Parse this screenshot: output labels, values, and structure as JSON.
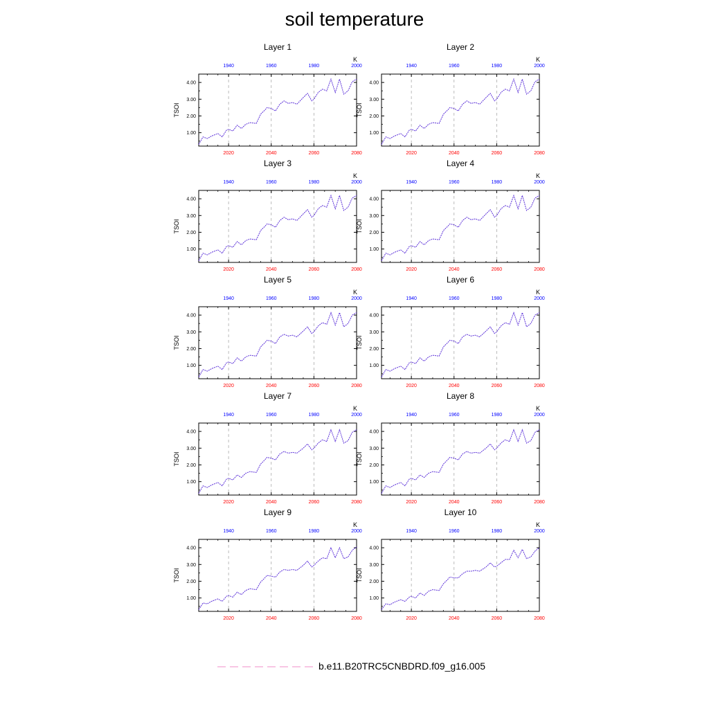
{
  "title": "soil temperature",
  "legend": {
    "label": "b.e11.B20TRC5CNBDRD.f09_g16.005"
  },
  "chart_data": {
    "type": "line",
    "title": "soil temperature",
    "ylabel": "TSOI",
    "units": "K",
    "x_bottom": {
      "ticks": [
        2020,
        2040,
        2060,
        2080
      ],
      "range": [
        2006,
        2080
      ]
    },
    "x_top": {
      "ticks": [
        1940,
        1960,
        1980,
        2000
      ],
      "range": [
        1926,
        2000
      ]
    },
    "yticks": [
      "1.00",
      "2.00",
      "3.00",
      "4.00"
    ],
    "ylim": [
      0.2,
      4.5
    ],
    "grid": "dashed vertical at bottom ticks",
    "series_name": "b.e11.B20TRC5CNBDRD.f09_g16.005",
    "panels": [
      {
        "label": "Layer 1",
        "x": [
          2006,
          2008,
          2010,
          2012,
          2015,
          2017,
          2019,
          2020,
          2022,
          2024,
          2026,
          2028,
          2030,
          2033,
          2035,
          2037,
          2038,
          2040,
          2042,
          2044,
          2046,
          2048,
          2050,
          2052,
          2055,
          2057,
          2059,
          2060,
          2062,
          2064,
          2066,
          2068,
          2070,
          2072,
          2074,
          2076,
          2078,
          2080
        ],
        "y": [
          0.3,
          0.75,
          0.65,
          0.8,
          0.95,
          0.75,
          1.15,
          1.2,
          1.1,
          1.45,
          1.25,
          1.5,
          1.6,
          1.55,
          2.1,
          2.35,
          2.5,
          2.45,
          2.3,
          2.7,
          2.9,
          2.75,
          2.8,
          2.7,
          3.1,
          3.35,
          2.9,
          3.0,
          3.4,
          3.6,
          3.5,
          4.2,
          3.4,
          4.2,
          3.3,
          3.5,
          4.05,
          4.2
        ]
      },
      {
        "label": "Layer 2",
        "x": [
          2006,
          2008,
          2010,
          2012,
          2015,
          2017,
          2019,
          2020,
          2022,
          2024,
          2026,
          2028,
          2030,
          2033,
          2035,
          2037,
          2038,
          2040,
          2042,
          2044,
          2046,
          2048,
          2050,
          2052,
          2055,
          2057,
          2059,
          2060,
          2062,
          2064,
          2066,
          2068,
          2070,
          2072,
          2074,
          2076,
          2078,
          2080
        ],
        "y": [
          0.3,
          0.75,
          0.65,
          0.8,
          0.95,
          0.75,
          1.15,
          1.2,
          1.1,
          1.45,
          1.25,
          1.5,
          1.6,
          1.55,
          2.1,
          2.35,
          2.5,
          2.45,
          2.3,
          2.7,
          2.9,
          2.75,
          2.8,
          2.7,
          3.1,
          3.35,
          2.9,
          3.0,
          3.4,
          3.6,
          3.5,
          4.2,
          3.4,
          4.2,
          3.3,
          3.5,
          4.05,
          4.2
        ]
      },
      {
        "label": "Layer 3",
        "x": [
          2006,
          2008,
          2010,
          2012,
          2015,
          2017,
          2019,
          2020,
          2022,
          2024,
          2026,
          2028,
          2030,
          2033,
          2035,
          2037,
          2038,
          2040,
          2042,
          2044,
          2046,
          2048,
          2050,
          2052,
          2055,
          2057,
          2059,
          2060,
          2062,
          2064,
          2066,
          2068,
          2070,
          2072,
          2074,
          2076,
          2078,
          2080
        ],
        "y": [
          0.3,
          0.75,
          0.65,
          0.8,
          0.95,
          0.75,
          1.15,
          1.2,
          1.1,
          1.45,
          1.25,
          1.5,
          1.6,
          1.55,
          2.1,
          2.35,
          2.5,
          2.45,
          2.3,
          2.7,
          2.9,
          2.75,
          2.8,
          2.7,
          3.1,
          3.35,
          2.9,
          3.0,
          3.4,
          3.6,
          3.5,
          4.2,
          3.4,
          4.2,
          3.3,
          3.5,
          4.05,
          4.2
        ]
      },
      {
        "label": "Layer 4",
        "x": [
          2006,
          2008,
          2010,
          2012,
          2015,
          2017,
          2019,
          2020,
          2022,
          2024,
          2026,
          2028,
          2030,
          2033,
          2035,
          2037,
          2038,
          2040,
          2042,
          2044,
          2046,
          2048,
          2050,
          2052,
          2055,
          2057,
          2059,
          2060,
          2062,
          2064,
          2066,
          2068,
          2070,
          2072,
          2074,
          2076,
          2078,
          2080
        ],
        "y": [
          0.3,
          0.75,
          0.65,
          0.8,
          0.95,
          0.75,
          1.15,
          1.2,
          1.1,
          1.45,
          1.25,
          1.5,
          1.6,
          1.55,
          2.1,
          2.35,
          2.5,
          2.45,
          2.3,
          2.7,
          2.9,
          2.75,
          2.8,
          2.7,
          3.1,
          3.35,
          2.9,
          3.0,
          3.4,
          3.6,
          3.5,
          4.2,
          3.4,
          4.2,
          3.3,
          3.5,
          4.05,
          4.2
        ]
      },
      {
        "label": "Layer 5",
        "x": [
          2006,
          2008,
          2010,
          2012,
          2015,
          2017,
          2019,
          2020,
          2022,
          2024,
          2026,
          2028,
          2030,
          2033,
          2035,
          2037,
          2038,
          2040,
          2042,
          2044,
          2046,
          2048,
          2050,
          2052,
          2055,
          2057,
          2059,
          2060,
          2062,
          2064,
          2066,
          2068,
          2070,
          2072,
          2074,
          2076,
          2078,
          2080
        ],
        "y": [
          0.3,
          0.75,
          0.65,
          0.8,
          0.95,
          0.75,
          1.15,
          1.2,
          1.1,
          1.45,
          1.25,
          1.5,
          1.6,
          1.55,
          2.1,
          2.35,
          2.5,
          2.45,
          2.3,
          2.7,
          2.85,
          2.75,
          2.8,
          2.7,
          3.05,
          3.3,
          2.9,
          3.0,
          3.35,
          3.55,
          3.45,
          4.15,
          3.4,
          4.15,
          3.3,
          3.5,
          4.0,
          4.15
        ]
      },
      {
        "label": "Layer 6",
        "x": [
          2006,
          2008,
          2010,
          2012,
          2015,
          2017,
          2019,
          2020,
          2022,
          2024,
          2026,
          2028,
          2030,
          2033,
          2035,
          2037,
          2038,
          2040,
          2042,
          2044,
          2046,
          2048,
          2050,
          2052,
          2055,
          2057,
          2059,
          2060,
          2062,
          2064,
          2066,
          2068,
          2070,
          2072,
          2074,
          2076,
          2078,
          2080
        ],
        "y": [
          0.3,
          0.75,
          0.65,
          0.8,
          0.95,
          0.75,
          1.15,
          1.2,
          1.1,
          1.45,
          1.25,
          1.5,
          1.6,
          1.55,
          2.1,
          2.35,
          2.5,
          2.45,
          2.3,
          2.7,
          2.85,
          2.75,
          2.8,
          2.7,
          3.05,
          3.3,
          2.9,
          3.0,
          3.35,
          3.55,
          3.45,
          4.15,
          3.4,
          4.15,
          3.3,
          3.5,
          4.0,
          4.15
        ]
      },
      {
        "label": "Layer 7",
        "x": [
          2006,
          2008,
          2010,
          2012,
          2015,
          2017,
          2019,
          2020,
          2022,
          2024,
          2026,
          2028,
          2030,
          2033,
          2035,
          2037,
          2038,
          2040,
          2042,
          2044,
          2046,
          2048,
          2050,
          2052,
          2055,
          2057,
          2059,
          2060,
          2062,
          2064,
          2066,
          2068,
          2070,
          2072,
          2074,
          2076,
          2078,
          2080
        ],
        "y": [
          0.3,
          0.75,
          0.65,
          0.8,
          0.95,
          0.75,
          1.15,
          1.2,
          1.1,
          1.4,
          1.25,
          1.5,
          1.6,
          1.55,
          2.05,
          2.3,
          2.45,
          2.4,
          2.3,
          2.65,
          2.8,
          2.7,
          2.75,
          2.7,
          3.0,
          3.25,
          2.9,
          3.0,
          3.3,
          3.5,
          3.4,
          4.1,
          3.4,
          4.1,
          3.3,
          3.45,
          3.95,
          4.1
        ]
      },
      {
        "label": "Layer 8",
        "x": [
          2006,
          2008,
          2010,
          2012,
          2015,
          2017,
          2019,
          2020,
          2022,
          2024,
          2026,
          2028,
          2030,
          2033,
          2035,
          2037,
          2038,
          2040,
          2042,
          2044,
          2046,
          2048,
          2050,
          2052,
          2055,
          2057,
          2059,
          2060,
          2062,
          2064,
          2066,
          2068,
          2070,
          2072,
          2074,
          2076,
          2078,
          2080
        ],
        "y": [
          0.3,
          0.75,
          0.65,
          0.8,
          0.95,
          0.75,
          1.15,
          1.2,
          1.1,
          1.4,
          1.25,
          1.5,
          1.6,
          1.55,
          2.05,
          2.3,
          2.45,
          2.4,
          2.3,
          2.65,
          2.8,
          2.7,
          2.75,
          2.7,
          3.0,
          3.25,
          2.9,
          3.0,
          3.3,
          3.5,
          3.4,
          4.1,
          3.4,
          4.1,
          3.3,
          3.45,
          3.95,
          4.1
        ]
      },
      {
        "label": "Layer 9",
        "x": [
          2006,
          2008,
          2010,
          2012,
          2015,
          2017,
          2019,
          2020,
          2022,
          2024,
          2026,
          2028,
          2030,
          2033,
          2035,
          2037,
          2038,
          2040,
          2042,
          2044,
          2046,
          2048,
          2050,
          2052,
          2055,
          2057,
          2059,
          2060,
          2062,
          2064,
          2066,
          2068,
          2070,
          2072,
          2074,
          2076,
          2078,
          2080
        ],
        "y": [
          0.3,
          0.7,
          0.65,
          0.8,
          0.95,
          0.8,
          1.1,
          1.15,
          1.05,
          1.35,
          1.2,
          1.45,
          1.55,
          1.5,
          1.95,
          2.2,
          2.35,
          2.3,
          2.25,
          2.55,
          2.7,
          2.65,
          2.7,
          2.65,
          2.95,
          3.2,
          2.85,
          2.95,
          3.2,
          3.4,
          3.35,
          4.0,
          3.4,
          4.0,
          3.35,
          3.45,
          3.85,
          4.05
        ]
      },
      {
        "label": "Layer 10",
        "x": [
          2006,
          2008,
          2010,
          2012,
          2015,
          2017,
          2019,
          2020,
          2022,
          2024,
          2026,
          2028,
          2030,
          2033,
          2035,
          2037,
          2038,
          2040,
          2042,
          2044,
          2046,
          2048,
          2050,
          2052,
          2055,
          2057,
          2059,
          2060,
          2062,
          2064,
          2066,
          2068,
          2070,
          2072,
          2074,
          2076,
          2078,
          2080
        ],
        "y": [
          0.3,
          0.65,
          0.6,
          0.75,
          0.9,
          0.8,
          1.05,
          1.1,
          1.0,
          1.3,
          1.15,
          1.4,
          1.5,
          1.45,
          1.85,
          2.1,
          2.25,
          2.2,
          2.2,
          2.45,
          2.6,
          2.6,
          2.65,
          2.6,
          2.85,
          3.1,
          2.85,
          2.9,
          3.1,
          3.3,
          3.3,
          3.85,
          3.4,
          3.9,
          3.35,
          3.45,
          3.8,
          4.0
        ]
      }
    ]
  }
}
